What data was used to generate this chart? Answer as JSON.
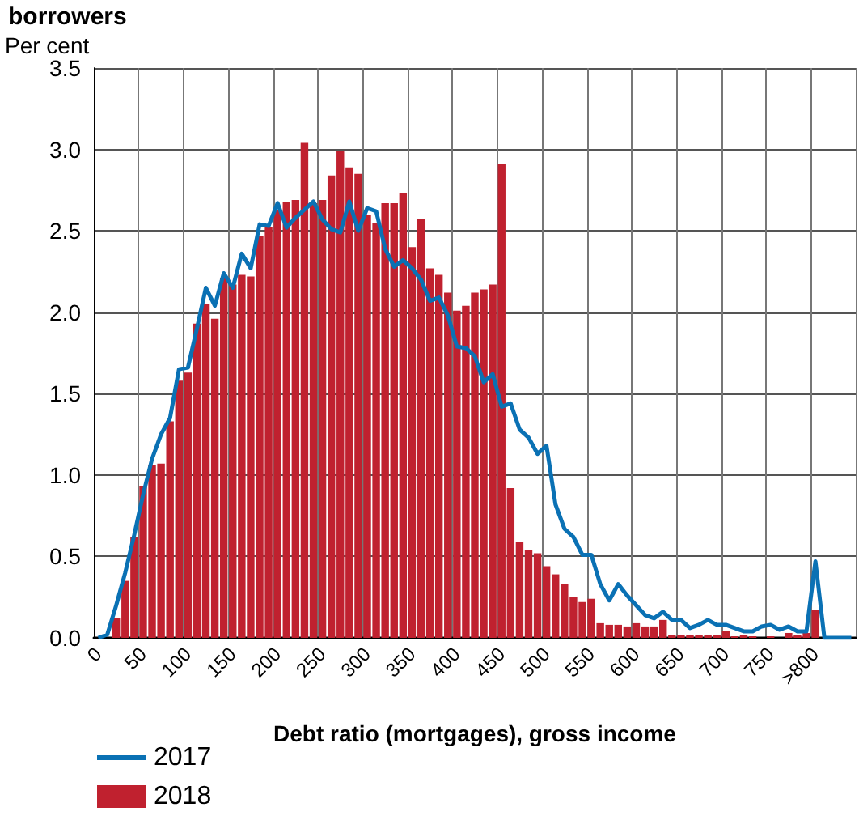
{
  "chart_data": {
    "type": "bar",
    "title": "borrowers",
    "ylabel": "Per cent",
    "xlabel": "Debt ratio (mortgages), gross income",
    "categories": [
      "0",
      null,
      null,
      null,
      null,
      "50",
      null,
      null,
      null,
      null,
      "100",
      null,
      null,
      null,
      null,
      "150",
      null,
      null,
      null,
      null,
      "200",
      null,
      null,
      null,
      null,
      "250",
      null,
      null,
      null,
      null,
      "300",
      null,
      null,
      null,
      null,
      "350",
      null,
      null,
      null,
      null,
      "400",
      null,
      null,
      null,
      null,
      "450",
      null,
      null,
      null,
      null,
      "500",
      null,
      null,
      null,
      null,
      "550",
      null,
      null,
      null,
      null,
      "600",
      null,
      null,
      null,
      null,
      "650",
      null,
      null,
      null,
      null,
      "700",
      null,
      null,
      null,
      null,
      "750",
      null,
      null,
      null,
      null,
      ">800",
      null,
      null,
      null,
      null
    ],
    "series": [
      {
        "name": "2017",
        "type": "line",
        "color": "#0a71b4",
        "values": [
          0,
          0.02,
          0.2,
          0.4,
          0.63,
          0.88,
          1.1,
          1.25,
          1.35,
          1.65,
          1.66,
          1.9,
          2.15,
          2.04,
          2.24,
          2.15,
          2.36,
          2.27,
          2.54,
          2.53,
          2.67,
          2.52,
          2.58,
          2.63,
          2.68,
          2.57,
          2.51,
          2.49,
          2.68,
          2.5,
          2.64,
          2.62,
          2.39,
          2.28,
          2.32,
          2.27,
          2.2,
          2.07,
          2.09,
          1.98,
          1.79,
          1.78,
          1.73,
          1.57,
          1.62,
          1.42,
          1.44,
          1.28,
          1.23,
          1.13,
          1.18,
          0.82,
          0.67,
          0.62,
          0.51,
          0.51,
          0.33,
          0.23,
          0.33,
          0.26,
          0.2,
          0.14,
          0.12,
          0.16,
          0.11,
          0.11,
          0.06,
          0.08,
          0.11,
          0.08,
          0.08,
          0.06,
          0.04,
          0.04,
          0.07,
          0.08,
          0.05,
          0.07,
          0.04,
          0.04,
          0.47,
          0,
          0,
          0,
          0
        ]
      },
      {
        "name": "2018",
        "color": "#c0212f",
        "values": [
          0,
          0,
          0.12,
          0.35,
          0.62,
          0.93,
          1.06,
          1.07,
          1.33,
          1.58,
          1.63,
          1.93,
          2.05,
          1.96,
          2.21,
          2.17,
          2.23,
          2.22,
          2.47,
          2.52,
          2.63,
          2.68,
          2.69,
          3.04,
          2.67,
          2.69,
          2.84,
          2.99,
          2.89,
          2.85,
          2.6,
          2.55,
          2.67,
          2.67,
          2.73,
          2.4,
          2.57,
          2.27,
          2.23,
          2.12,
          2.01,
          2.04,
          2.12,
          2.14,
          2.17,
          2.91,
          0.92,
          0.59,
          0.54,
          0.52,
          0.44,
          0.39,
          0.33,
          0.25,
          0.22,
          0.24,
          0.09,
          0.08,
          0.08,
          0.07,
          0.09,
          0.07,
          0.07,
          0.11,
          0.02,
          0.02,
          0.02,
          0.02,
          0.02,
          0.02,
          0.04,
          0.01,
          0.02,
          0.01,
          0,
          0.01,
          0,
          0.03,
          0.02,
          0.03,
          0.17,
          null,
          null,
          null,
          null
        ]
      }
    ],
    "ylim": [
      0,
      3.5
    ],
    "yticks": [
      {
        "value": 0,
        "label": "0.0"
      },
      {
        "value": 0.5,
        "label": "0.5"
      },
      {
        "value": 1,
        "label": "1.0"
      },
      {
        "value": 1.5,
        "label": "1.5"
      },
      {
        "value": 2,
        "label": "2.0"
      },
      {
        "value": 2.5,
        "label": "2.5"
      },
      {
        "value": 3,
        "label": "3.0"
      },
      {
        "value": 3.5,
        "label": "3.5"
      }
    ],
    "grid": true,
    "legend": "bottom left",
    "marker": "none"
  }
}
